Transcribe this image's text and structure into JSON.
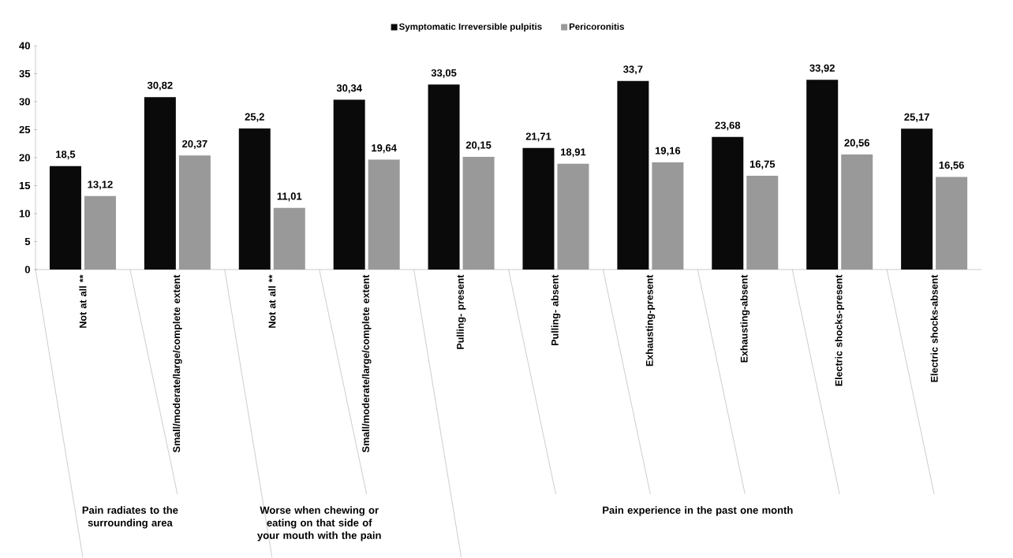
{
  "chart_data": {
    "type": "bar",
    "categories": [
      "Not at all **",
      "Small/moderate/large/complete extent",
      "Not at all **",
      "Small/moderate/large/complete extent",
      "Pulling- present",
      "Pulling- absent",
      "Exhausting-present",
      "Exhausting-absent",
      "Electric shocks-present",
      "Electric shocks-absent"
    ],
    "series": [
      {
        "name": "Symptomatic Irreversible pulpitis",
        "color": "#0a0a0a",
        "values": [
          18.5,
          30.82,
          25.2,
          30.34,
          33.05,
          21.71,
          33.7,
          23.68,
          33.92,
          25.17
        ],
        "value_labels": [
          "18,5",
          "30,82",
          "25,2",
          "30,34",
          "33,05",
          "21,71",
          "33,7",
          "23,68",
          "33,92",
          "25,17"
        ]
      },
      {
        "name": "Pericoronitis",
        "color": "#999999",
        "values": [
          13.12,
          20.37,
          11.01,
          19.64,
          20.15,
          18.91,
          19.16,
          16.75,
          20.56,
          16.56
        ],
        "value_labels": [
          "13,12",
          "20,37",
          "11,01",
          "19,64",
          "20,15",
          "18,91",
          "19,16",
          "16,75",
          "20,56",
          "16,56"
        ]
      }
    ],
    "annotations": [
      "Pain radiates to the surrounding area",
      "Worse when chewing or eating on that side of your mouth with the pain",
      "Pain experience in the past one month"
    ],
    "ylim": [
      0,
      40
    ],
    "yticks": [
      0,
      5,
      10,
      15,
      20,
      25,
      30,
      35,
      40
    ],
    "legend": "top",
    "grid": false
  }
}
